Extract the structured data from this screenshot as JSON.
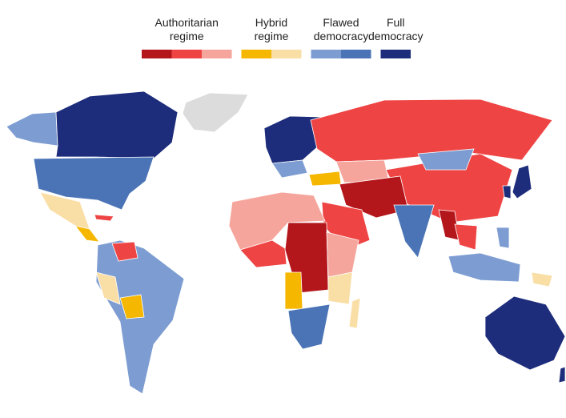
{
  "legend": [
    {
      "lines": [
        "Authoritarian",
        "regime"
      ],
      "colors": [
        "#b3161b",
        "#ef4444",
        "#f5a59b"
      ]
    },
    {
      "lines": [
        "Hybrid",
        "regime"
      ],
      "colors": [
        "#f5b700",
        "#f9dea6"
      ]
    },
    {
      "lines": [
        "Flawed",
        "democracy"
      ],
      "colors": [
        "#7d9dd2",
        "#4b74b6"
      ]
    },
    {
      "lines": [
        "Full",
        "democracy"
      ],
      "colors": [
        "#1e2d7b"
      ]
    }
  ]
}
